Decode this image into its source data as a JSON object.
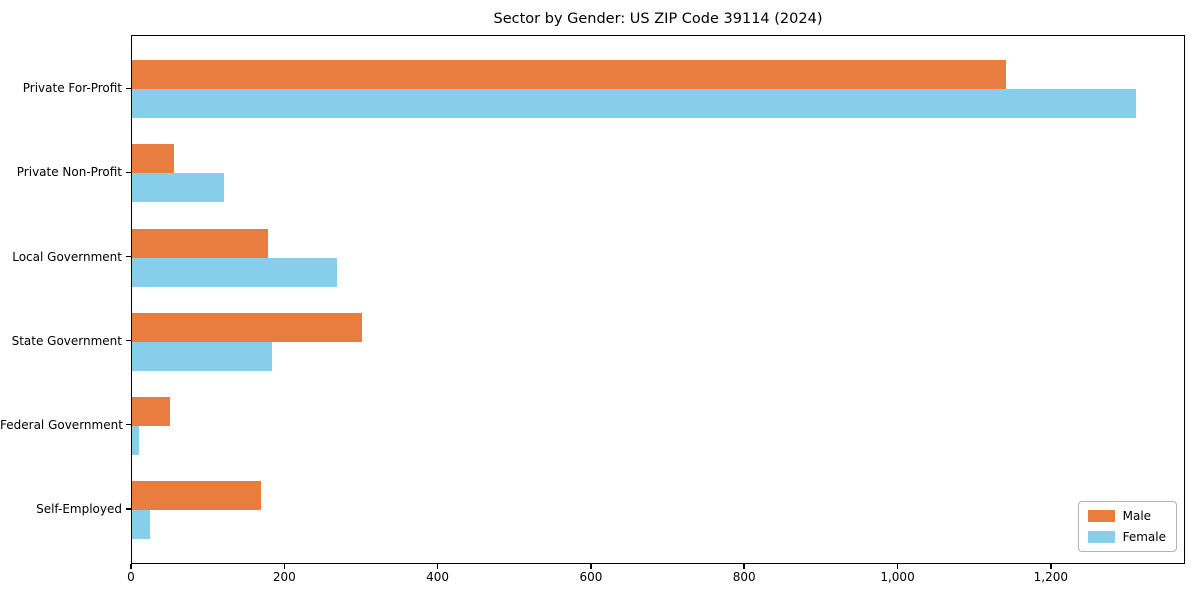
{
  "figure": {
    "background": "#ffffff",
    "text_color": "#000000"
  },
  "chart_data": {
    "type": "bar",
    "orientation": "horizontal",
    "title": "Sector by Gender: US ZIP Code 39114 (2024)",
    "categories": [
      "Private For-Profit",
      "Private Non-Profit",
      "Local Government",
      "State Government",
      "Federal Government",
      "Self-Employed"
    ],
    "series": [
      {
        "name": "Male",
        "color": "#e87d3e",
        "values": [
          1140,
          55,
          178,
          300,
          50,
          168
        ]
      },
      {
        "name": "Female",
        "color": "#87ceeb",
        "values": [
          1310,
          120,
          267,
          183,
          9,
          24
        ]
      }
    ],
    "xlabel": "",
    "ylabel": "",
    "xlim": [
      0,
      1375
    ],
    "xticks": [
      0,
      200,
      400,
      600,
      800,
      1000,
      1200
    ],
    "xtick_labels": [
      "0",
      "200",
      "400",
      "600",
      "800",
      "1,000",
      "1,200"
    ],
    "grid": false,
    "legend": {
      "position": "lower right"
    }
  }
}
